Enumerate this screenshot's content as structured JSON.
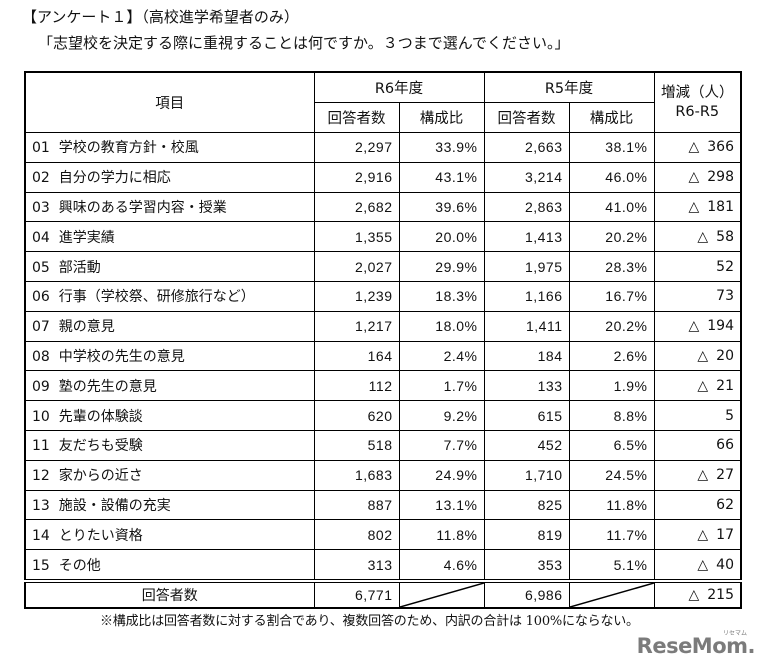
{
  "header": {
    "title": "【アンケート１】（高校進学希望者のみ）",
    "question": "「志望校を決定する際に重視することは何ですか。３つまで選んでください。」"
  },
  "table": {
    "columns": {
      "item": "項目",
      "r6": "R6年度",
      "r5": "R5年度",
      "count": "回答者数",
      "ratio": "構成比",
      "change_line1": "増減（人）",
      "change_line2": "R6-R5"
    },
    "rows": [
      {
        "no": "01",
        "label": "学校の教育方針・校風",
        "r6_count": "2,297",
        "r6_ratio": "33.9%",
        "r5_count": "2,663",
        "r5_ratio": "38.1%",
        "change_sign": "△",
        "change": "366"
      },
      {
        "no": "02",
        "label": "自分の学力に相応",
        "r6_count": "2,916",
        "r6_ratio": "43.1%",
        "r5_count": "3,214",
        "r5_ratio": "46.0%",
        "change_sign": "△",
        "change": "298"
      },
      {
        "no": "03",
        "label": "興味のある学習内容・授業",
        "r6_count": "2,682",
        "r6_ratio": "39.6%",
        "r5_count": "2,863",
        "r5_ratio": "41.0%",
        "change_sign": "△",
        "change": "181"
      },
      {
        "no": "04",
        "label": "進学実績",
        "r6_count": "1,355",
        "r6_ratio": "20.0%",
        "r5_count": "1,413",
        "r5_ratio": "20.2%",
        "change_sign": "△",
        "change": "58"
      },
      {
        "no": "05",
        "label": "部活動",
        "r6_count": "2,027",
        "r6_ratio": "29.9%",
        "r5_count": "1,975",
        "r5_ratio": "28.3%",
        "change_sign": "",
        "change": "52"
      },
      {
        "no": "06",
        "label": "行事（学校祭、研修旅行など）",
        "r6_count": "1,239",
        "r6_ratio": "18.3%",
        "r5_count": "1,166",
        "r5_ratio": "16.7%",
        "change_sign": "",
        "change": "73"
      },
      {
        "no": "07",
        "label": "親の意見",
        "r6_count": "1,217",
        "r6_ratio": "18.0%",
        "r5_count": "1,411",
        "r5_ratio": "20.2%",
        "change_sign": "△",
        "change": "194"
      },
      {
        "no": "08",
        "label": "中学校の先生の意見",
        "r6_count": "164",
        "r6_ratio": "2.4%",
        "r5_count": "184",
        "r5_ratio": "2.6%",
        "change_sign": "△",
        "change": "20"
      },
      {
        "no": "09",
        "label": "塾の先生の意見",
        "r6_count": "112",
        "r6_ratio": "1.7%",
        "r5_count": "133",
        "r5_ratio": "1.9%",
        "change_sign": "△",
        "change": "21"
      },
      {
        "no": "10",
        "label": "先輩の体験談",
        "r6_count": "620",
        "r6_ratio": "9.2%",
        "r5_count": "615",
        "r5_ratio": "8.8%",
        "change_sign": "",
        "change": "5"
      },
      {
        "no": "11",
        "label": "友だちも受験",
        "r6_count": "518",
        "r6_ratio": "7.7%",
        "r5_count": "452",
        "r5_ratio": "6.5%",
        "change_sign": "",
        "change": "66"
      },
      {
        "no": "12",
        "label": "家からの近さ",
        "r6_count": "1,683",
        "r6_ratio": "24.9%",
        "r5_count": "1,710",
        "r5_ratio": "24.5%",
        "change_sign": "△",
        "change": "27"
      },
      {
        "no": "13",
        "label": "施設・設備の充実",
        "r6_count": "887",
        "r6_ratio": "13.1%",
        "r5_count": "825",
        "r5_ratio": "11.8%",
        "change_sign": "",
        "change": "62"
      },
      {
        "no": "14",
        "label": "とりたい資格",
        "r6_count": "802",
        "r6_ratio": "11.8%",
        "r5_count": "819",
        "r5_ratio": "11.7%",
        "change_sign": "△",
        "change": "17"
      },
      {
        "no": "15",
        "label": "その他",
        "r6_count": "313",
        "r6_ratio": "4.6%",
        "r5_count": "353",
        "r5_ratio": "5.1%",
        "change_sign": "△",
        "change": "40"
      }
    ],
    "total": {
      "label": "回答者数",
      "r6_count": "6,771",
      "r5_count": "6,986",
      "change_sign": "△",
      "change": "215"
    }
  },
  "footnote": "※構成比は回答者数に対する割合であり、複数回答のため、内訳の合計は 100%にならない。",
  "logo": {
    "text": "ReseMom.",
    "ruby": "リセマム"
  }
}
